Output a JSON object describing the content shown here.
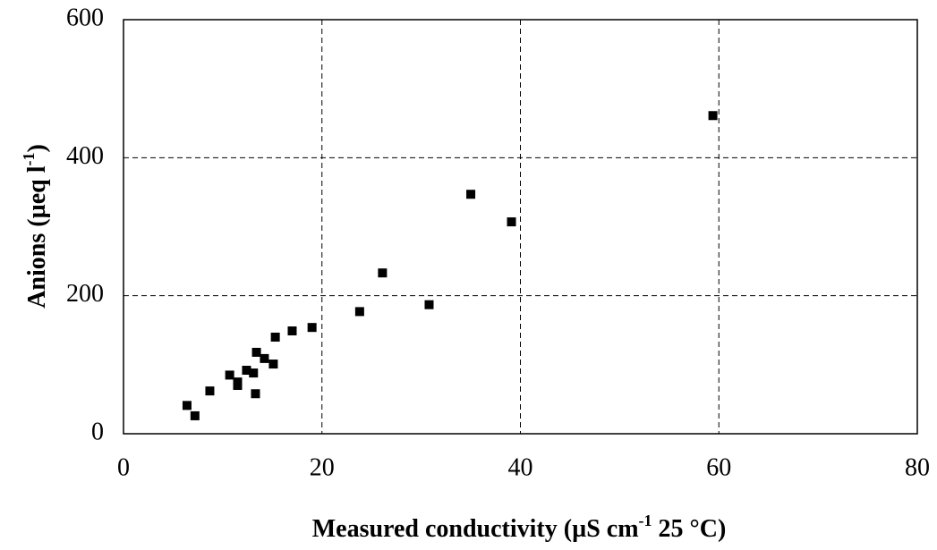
{
  "chart_data": {
    "type": "scatter",
    "xlabel": [
      "Measured conductivity (µS cm",
      "-1",
      " 25 °C)"
    ],
    "ylabel": [
      "Anions (µeq l",
      "-1",
      ")"
    ],
    "series": [
      {
        "color": "#000000",
        "x": [
          6.4,
          7.2,
          8.7,
          10.7,
          11.5,
          11.5,
          12.4,
          13.1,
          13.4,
          13.3,
          14.2,
          15.1,
          15.3,
          17.0,
          19.0,
          23.8,
          26.1,
          30.8,
          35.0,
          39.1,
          59.4
        ],
        "values": [
          41,
          26,
          62,
          85,
          70,
          75,
          92,
          88,
          118,
          58,
          109,
          101,
          140,
          149,
          154,
          177,
          233,
          187,
          347,
          307,
          461
        ]
      }
    ],
    "xlim": [
      0,
      80
    ],
    "xticks": [
      0,
      20,
      40,
      60,
      80
    ],
    "ylim": [
      0,
      600
    ],
    "yticks": [
      0,
      200,
      400,
      600
    ],
    "grid": true
  }
}
